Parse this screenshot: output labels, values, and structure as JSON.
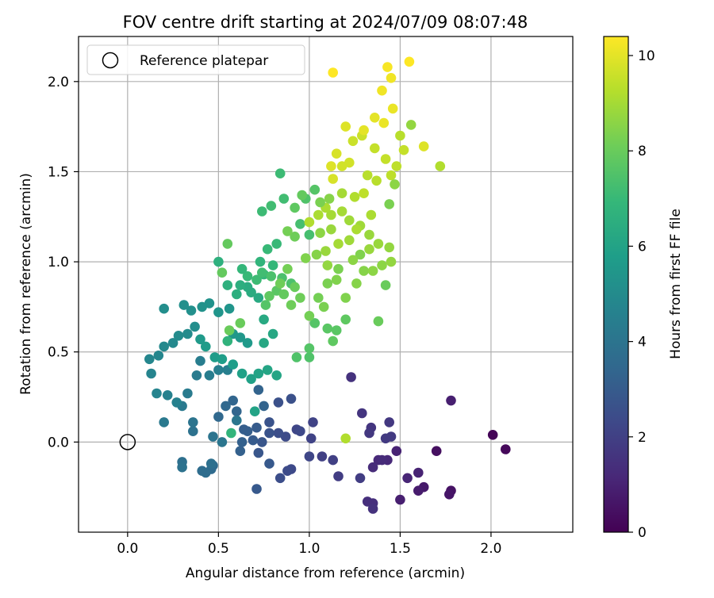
{
  "chart_data": {
    "type": "scatter",
    "title": "FOV centre drift starting at 2024/07/09 08:07:48",
    "xlabel": "Angular distance from reference (arcmin)",
    "ylabel": "Rotation from reference (arcmin)",
    "xlim": [
      -0.27,
      2.45
    ],
    "ylim": [
      -0.5,
      2.25
    ],
    "xticks": [
      0.0,
      0.5,
      1.0,
      1.5,
      2.0
    ],
    "yticks": [
      0.0,
      0.5,
      1.0,
      1.5,
      2.0
    ],
    "grid": true,
    "legend": {
      "placement": "top-left",
      "entries": [
        "Reference platepar"
      ]
    },
    "reference_point": {
      "x": 0.0,
      "y": 0.0
    },
    "colorbar": {
      "label": "Hours from first FF file",
      "range": [
        0,
        10.4
      ],
      "ticks": [
        0,
        2,
        4,
        6,
        8,
        10
      ],
      "colormap": "viridis"
    },
    "series": [
      {
        "columns": [
          "x",
          "y",
          "hours"
        ],
        "points": [
          [
            2.01,
            0.04,
            0.1
          ],
          [
            2.08,
            -0.04,
            0.2
          ],
          [
            1.7,
            -0.05,
            0.4
          ],
          [
            1.78,
            -0.27,
            0.5
          ],
          [
            1.77,
            -0.29,
            0.6
          ],
          [
            1.63,
            -0.25,
            0.7
          ],
          [
            1.6,
            -0.27,
            0.8
          ],
          [
            1.5,
            -0.32,
            0.9
          ],
          [
            1.48,
            -0.05,
            1.0
          ],
          [
            1.6,
            -0.17,
            1.0
          ],
          [
            1.54,
            -0.2,
            1.1
          ],
          [
            1.38,
            -0.1,
            1.2
          ],
          [
            1.43,
            -0.1,
            1.2
          ],
          [
            1.35,
            -0.14,
            1.3
          ],
          [
            1.4,
            -0.1,
            1.3
          ],
          [
            1.32,
            -0.33,
            1.4
          ],
          [
            1.35,
            -0.34,
            1.4
          ],
          [
            1.35,
            -0.37,
            1.5
          ],
          [
            1.23,
            0.36,
            1.5
          ],
          [
            1.29,
            0.16,
            1.6
          ],
          [
            1.34,
            0.08,
            1.6
          ],
          [
            1.33,
            0.05,
            1.7
          ],
          [
            1.44,
            0.11,
            1.7
          ],
          [
            1.45,
            0.03,
            1.8
          ],
          [
            1.42,
            0.02,
            1.8
          ],
          [
            1.78,
            0.23,
            0.9
          ],
          [
            1.28,
            -0.2,
            1.9
          ],
          [
            1.16,
            -0.19,
            1.9
          ],
          [
            1.13,
            -0.1,
            2.0
          ],
          [
            1.07,
            -0.08,
            2.0
          ],
          [
            1.01,
            0.02,
            2.1
          ],
          [
            1.02,
            0.11,
            2.1
          ],
          [
            1.0,
            -0.08,
            2.2
          ],
          [
            0.93,
            0.07,
            2.2
          ],
          [
            0.95,
            0.06,
            2.3
          ],
          [
            0.9,
            -0.15,
            2.3
          ],
          [
            0.88,
            -0.16,
            2.4
          ],
          [
            0.87,
            0.03,
            2.4
          ],
          [
            0.83,
            0.05,
            2.5
          ],
          [
            0.84,
            -0.2,
            2.5
          ],
          [
            0.9,
            0.24,
            2.6
          ],
          [
            0.83,
            0.22,
            2.6
          ],
          [
            0.78,
            0.11,
            2.7
          ],
          [
            0.78,
            0.05,
            2.7
          ],
          [
            0.74,
            0.0,
            2.8
          ],
          [
            0.72,
            -0.06,
            2.8
          ],
          [
            0.71,
            -0.26,
            2.9
          ],
          [
            0.78,
            -0.12,
            2.9
          ],
          [
            0.71,
            0.08,
            3.0
          ],
          [
            0.69,
            0.01,
            3.0
          ],
          [
            0.66,
            0.06,
            3.1
          ],
          [
            0.64,
            0.07,
            3.1
          ],
          [
            0.63,
            0.0,
            3.2
          ],
          [
            0.62,
            -0.05,
            3.2
          ],
          [
            0.75,
            0.2,
            3.3
          ],
          [
            0.72,
            0.29,
            3.3
          ],
          [
            0.6,
            0.17,
            3.4
          ],
          [
            0.58,
            0.23,
            3.4
          ],
          [
            0.54,
            0.2,
            3.5
          ],
          [
            0.5,
            0.14,
            3.5
          ],
          [
            0.47,
            -0.13,
            3.6
          ],
          [
            0.46,
            -0.15,
            3.6
          ],
          [
            0.43,
            -0.17,
            3.7
          ],
          [
            0.41,
            -0.16,
            3.7
          ],
          [
            0.46,
            -0.12,
            3.8
          ],
          [
            0.3,
            -0.11,
            3.8
          ],
          [
            0.3,
            -0.14,
            3.9
          ],
          [
            0.36,
            0.06,
            3.9
          ],
          [
            0.36,
            0.11,
            4.0
          ],
          [
            0.47,
            0.03,
            4.0
          ],
          [
            0.52,
            0.0,
            4.1
          ],
          [
            0.6,
            0.12,
            4.1
          ],
          [
            0.2,
            0.11,
            4.2
          ],
          [
            0.3,
            0.2,
            4.2
          ],
          [
            0.33,
            0.27,
            4.3
          ],
          [
            0.38,
            0.37,
            4.3
          ],
          [
            0.4,
            0.45,
            4.4
          ],
          [
            0.45,
            0.37,
            4.4
          ],
          [
            0.5,
            0.4,
            4.5
          ],
          [
            0.55,
            0.4,
            4.5
          ],
          [
            0.27,
            0.22,
            4.6
          ],
          [
            0.22,
            0.26,
            4.6
          ],
          [
            0.16,
            0.27,
            4.7
          ],
          [
            0.13,
            0.38,
            4.7
          ],
          [
            0.12,
            0.46,
            4.8
          ],
          [
            0.17,
            0.48,
            4.8
          ],
          [
            0.2,
            0.53,
            4.9
          ],
          [
            0.25,
            0.55,
            4.9
          ],
          [
            0.28,
            0.59,
            5.0
          ],
          [
            0.33,
            0.6,
            5.0
          ],
          [
            0.37,
            0.64,
            5.1
          ],
          [
            0.2,
            0.74,
            5.1
          ],
          [
            0.31,
            0.76,
            5.2
          ],
          [
            0.35,
            0.73,
            5.2
          ],
          [
            0.41,
            0.75,
            5.3
          ],
          [
            0.45,
            0.77,
            5.3
          ],
          [
            0.5,
            0.72,
            5.4
          ],
          [
            0.56,
            0.74,
            5.4
          ],
          [
            0.58,
            0.6,
            5.5
          ],
          [
            0.62,
            0.58,
            5.5
          ],
          [
            0.66,
            0.55,
            5.6
          ],
          [
            0.4,
            0.57,
            5.6
          ],
          [
            0.43,
            0.53,
            5.7
          ],
          [
            0.48,
            0.47,
            5.7
          ],
          [
            0.52,
            0.46,
            5.8
          ],
          [
            0.58,
            0.43,
            5.8
          ],
          [
            0.63,
            0.38,
            5.9
          ],
          [
            0.68,
            0.35,
            5.9
          ],
          [
            0.7,
            0.17,
            6.0
          ],
          [
            0.72,
            0.38,
            6.0
          ],
          [
            0.77,
            0.4,
            6.1
          ],
          [
            0.82,
            0.37,
            6.1
          ],
          [
            0.75,
            0.55,
            6.2
          ],
          [
            0.8,
            0.6,
            6.2
          ],
          [
            0.75,
            0.68,
            6.3
          ],
          [
            0.72,
            0.8,
            6.3
          ],
          [
            0.68,
            0.83,
            6.4
          ],
          [
            0.66,
            0.86,
            6.4
          ],
          [
            0.6,
            0.82,
            6.5
          ],
          [
            0.62,
            0.87,
            6.5
          ],
          [
            0.55,
            0.87,
            6.6
          ],
          [
            0.5,
            1.0,
            6.6
          ],
          [
            0.55,
            0.56,
            6.7
          ],
          [
            0.57,
            0.05,
            6.8
          ],
          [
            0.73,
            1.0,
            6.8
          ],
          [
            0.75,
            0.93,
            6.9
          ],
          [
            0.8,
            0.98,
            6.9
          ],
          [
            0.77,
            1.07,
            7.0
          ],
          [
            0.82,
            1.1,
            7.0
          ],
          [
            0.84,
            1.49,
            7.1
          ],
          [
            0.74,
            1.28,
            7.1
          ],
          [
            0.79,
            1.31,
            7.2
          ],
          [
            0.86,
            1.35,
            7.2
          ],
          [
            0.95,
            1.21,
            7.3
          ],
          [
            1.0,
            1.15,
            7.3
          ],
          [
            0.85,
            0.91,
            7.4
          ],
          [
            0.9,
            0.88,
            7.4
          ],
          [
            0.93,
            0.47,
            7.5
          ],
          [
            1.0,
            0.47,
            7.5
          ],
          [
            1.0,
            0.52,
            7.6
          ],
          [
            1.03,
            0.66,
            7.6
          ],
          [
            1.1,
            0.63,
            7.7
          ],
          [
            1.15,
            0.62,
            7.7
          ],
          [
            1.2,
            0.68,
            7.8
          ],
          [
            1.13,
            0.56,
            7.8
          ],
          [
            0.55,
            1.1,
            7.9
          ],
          [
            0.52,
            0.94,
            7.9
          ],
          [
            0.56,
            0.62,
            8.0
          ],
          [
            0.62,
            0.66,
            8.0
          ],
          [
            0.9,
            0.76,
            8.1
          ],
          [
            0.95,
            0.8,
            8.1
          ],
          [
            1.0,
            0.7,
            8.2
          ],
          [
            1.05,
            0.8,
            8.2
          ],
          [
            1.08,
            0.75,
            8.3
          ],
          [
            1.1,
            0.88,
            8.3
          ],
          [
            1.15,
            0.9,
            8.4
          ],
          [
            1.2,
            0.8,
            8.4
          ],
          [
            1.26,
            0.88,
            8.5
          ],
          [
            1.3,
            0.95,
            8.5
          ],
          [
            1.35,
            0.95,
            8.6
          ],
          [
            1.4,
            0.98,
            8.6
          ],
          [
            1.45,
            1.0,
            8.7
          ],
          [
            1.44,
            1.08,
            8.7
          ],
          [
            1.38,
            1.1,
            8.8
          ],
          [
            1.33,
            1.15,
            8.8
          ],
          [
            1.28,
            1.2,
            8.9
          ],
          [
            1.22,
            1.23,
            8.9
          ],
          [
            1.18,
            1.28,
            9.0
          ],
          [
            1.12,
            1.26,
            9.0
          ],
          [
            1.09,
            1.3,
            9.1
          ],
          [
            1.05,
            1.26,
            9.1
          ],
          [
            1.0,
            1.22,
            9.2
          ],
          [
            1.2,
            0.02,
            9.2
          ],
          [
            1.38,
            0.67,
            8.0
          ],
          [
            1.42,
            0.87,
            8.0
          ],
          [
            1.32,
            1.48,
            9.3
          ],
          [
            1.37,
            1.45,
            9.3
          ],
          [
            1.45,
            1.48,
            9.4
          ],
          [
            1.48,
            1.53,
            9.4
          ],
          [
            1.42,
            1.57,
            9.5
          ],
          [
            1.36,
            1.63,
            9.5
          ],
          [
            1.29,
            1.7,
            9.6
          ],
          [
            1.24,
            1.67,
            9.6
          ],
          [
            1.22,
            1.55,
            9.7
          ],
          [
            1.18,
            1.53,
            9.7
          ],
          [
            1.15,
            1.6,
            9.8
          ],
          [
            1.13,
            1.46,
            9.8
          ],
          [
            1.12,
            1.53,
            9.9
          ],
          [
            1.2,
            1.75,
            9.9
          ],
          [
            1.3,
            1.73,
            10.0
          ],
          [
            1.36,
            1.8,
            10.0
          ],
          [
            1.41,
            1.77,
            10.1
          ],
          [
            1.46,
            1.85,
            10.1
          ],
          [
            1.4,
            1.95,
            10.2
          ],
          [
            1.45,
            2.02,
            10.2
          ],
          [
            1.43,
            2.08,
            10.3
          ],
          [
            1.55,
            2.11,
            10.4
          ],
          [
            1.13,
            2.05,
            10.4
          ],
          [
            1.5,
            1.7,
            9.3
          ],
          [
            1.52,
            1.62,
            9.5
          ],
          [
            1.56,
            1.76,
            8.7
          ],
          [
            1.63,
            1.64,
            9.9
          ],
          [
            1.72,
            1.53,
            9.2
          ],
          [
            1.47,
            1.43,
            8.6
          ],
          [
            1.44,
            1.32,
            8.3
          ],
          [
            0.98,
            1.35,
            7.5
          ],
          [
            1.03,
            1.4,
            7.6
          ],
          [
            0.92,
            1.3,
            7.8
          ],
          [
            0.96,
            1.37,
            7.9
          ],
          [
            0.92,
            1.14,
            8.1
          ],
          [
            0.88,
            1.17,
            8.2
          ],
          [
            0.98,
            1.02,
            8.4
          ],
          [
            1.04,
            1.04,
            8.5
          ],
          [
            1.09,
            1.06,
            8.8
          ],
          [
            1.16,
            1.1,
            9.0
          ],
          [
            1.22,
            1.12,
            8.9
          ],
          [
            1.26,
            1.18,
            9.1
          ],
          [
            1.28,
            1.04,
            8.4
          ],
          [
            1.24,
            1.01,
            8.6
          ],
          [
            1.33,
            1.07,
            8.8
          ],
          [
            1.1,
            0.98,
            8.7
          ],
          [
            1.16,
            0.96,
            8.3
          ],
          [
            0.82,
            0.84,
            7.7
          ],
          [
            0.86,
            0.82,
            7.9
          ],
          [
            0.92,
            0.86,
            8.0
          ],
          [
            0.76,
            0.76,
            7.6
          ],
          [
            0.78,
            0.81,
            7.8
          ],
          [
            0.84,
            0.88,
            8.1
          ],
          [
            0.88,
            0.96,
            8.2
          ],
          [
            0.79,
            0.92,
            7.4
          ],
          [
            0.71,
            0.9,
            7.1
          ],
          [
            0.74,
            0.94,
            7.2
          ],
          [
            0.66,
            0.92,
            7.0
          ],
          [
            0.63,
            0.96,
            6.9
          ],
          [
            1.06,
            1.16,
            8.6
          ],
          [
            1.12,
            1.18,
            8.8
          ],
          [
            1.18,
            1.38,
            9.0
          ],
          [
            1.25,
            1.36,
            9.2
          ],
          [
            1.3,
            1.38,
            9.4
          ],
          [
            1.34,
            1.26,
            9.1
          ],
          [
            1.11,
            1.35,
            8.5
          ],
          [
            1.06,
            1.33,
            8.3
          ]
        ]
      }
    ]
  }
}
